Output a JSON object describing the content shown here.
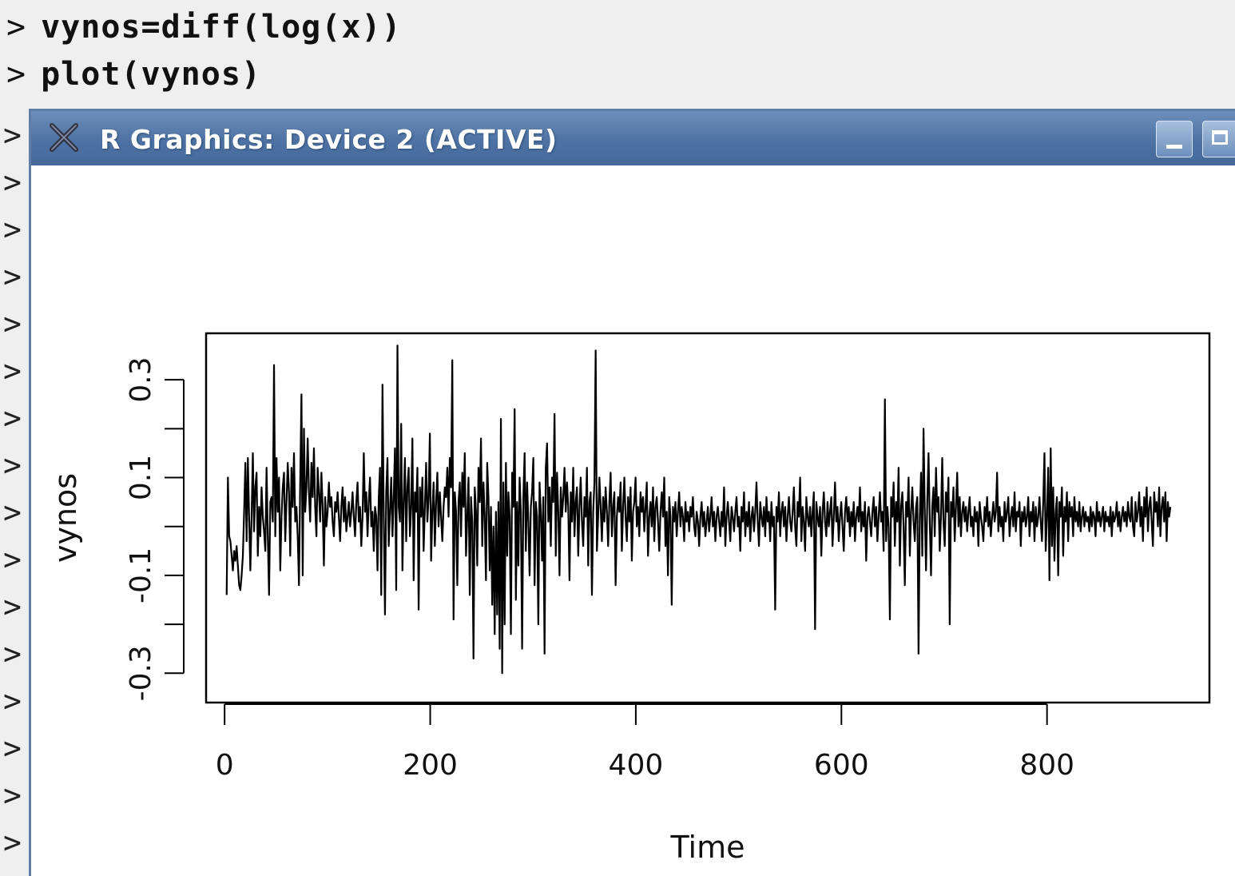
{
  "console": {
    "prompt": ">",
    "commands": [
      "vynos=diff(log(x))",
      "plot(vynos)"
    ],
    "idle_prompts": 16
  },
  "window": {
    "title": "R Graphics: Device 2 (ACTIVE)",
    "icons": {
      "close": "close-x-icon",
      "minimize": "minimize-icon",
      "maximize": "maximize-icon"
    },
    "titlebar_color": "#4d72a3"
  },
  "chart_data": {
    "type": "line",
    "title": "",
    "xlabel": "Time",
    "ylabel": "vynos",
    "xlim": [
      -18,
      958
    ],
    "ylim": [
      -0.36,
      0.395
    ],
    "xticks": [
      0,
      200,
      400,
      600,
      800
    ],
    "yticks": [
      -0.3,
      -0.2,
      -0.1,
      0.0,
      0.1,
      0.2,
      0.3
    ],
    "ytick_labels": [
      "-0.3",
      "",
      "-0.1",
      "",
      "0.1",
      "",
      "0.3"
    ],
    "xtick_labels": [
      "0",
      "200",
      "400",
      "600",
      "800"
    ],
    "grid": false,
    "line_color": "#000000",
    "n_points": 919,
    "series": [
      {
        "x_start": 2,
        "x_end": 920,
        "y": [
          -0.14,
          0.1,
          -0.02,
          -0.03,
          -0.06,
          -0.09,
          -0.05,
          -0.07,
          -0.04,
          -0.08,
          -0.12,
          -0.13,
          -0.1,
          -0.06,
          0.03,
          0.13,
          -0.03,
          0.14,
          0.02,
          -0.09,
          0.02,
          0.15,
          -0.01,
          0.08,
          0.11,
          -0.06,
          0.04,
          -0.02,
          0.08,
          0.02,
          -0.01,
          -0.05,
          0.12,
          -0.02,
          -0.14,
          0.05,
          0.06,
          0.01,
          0.33,
          -0.02,
          0.14,
          0.03,
          0.1,
          -0.09,
          0.02,
          0.08,
          0.11,
          -0.03,
          0.05,
          0.13,
          0.07,
          -0.06,
          0.12,
          0.04,
          0.15,
          0.01,
          0.04,
          -0.02,
          -0.12,
          0.09,
          0.27,
          -0.1,
          0.2,
          0.03,
          0.08,
          0.18,
          0.07,
          0.01,
          0.13,
          0.06,
          0.16,
          0.04,
          -0.02,
          0.12,
          0.07,
          0.01,
          0.11,
          0.04,
          -0.08,
          0.06,
          0.0,
          0.03,
          0.09,
          0.04,
          0.06,
          0.01,
          -0.02,
          0.05,
          0.03,
          0.07,
          0.02,
          -0.03,
          0.04,
          0.08,
          0.01,
          0.06,
          -0.01,
          0.02,
          0.05,
          0.0,
          0.03,
          0.07,
          0.02,
          -0.02,
          0.05,
          0.09,
          0.01,
          0.04,
          -0.04,
          0.02,
          0.15,
          0.03,
          0.07,
          -0.02,
          0.05,
          0.1,
          0.0,
          0.03,
          -0.05,
          0.04,
          0.02,
          -0.09,
          0.06,
          0.12,
          -0.14,
          0.29,
          0.02,
          -0.18,
          0.07,
          0.14,
          -0.04,
          0.03,
          0.1,
          -0.02,
          0.06,
          0.16,
          -0.13,
          0.37,
          0.04,
          0.01,
          0.21,
          -0.09,
          0.05,
          0.14,
          -0.03,
          0.08,
          0.12,
          -0.02,
          0.04,
          0.18,
          -0.11,
          0.07,
          0.03,
          0.12,
          -0.17,
          0.08,
          0.02,
          0.1,
          -0.05,
          0.04,
          0.13,
          0.01,
          0.06,
          0.19,
          -0.07,
          0.03,
          0.09,
          -0.04,
          0.05,
          0.11,
          0.0,
          0.07,
          0.02,
          -0.03,
          0.04,
          0.08,
          0.06,
          0.12,
          0.02,
          0.14,
          0.08,
          0.34,
          -0.19,
          0.07,
          0.03,
          -0.12,
          0.05,
          0.09,
          -0.02,
          0.11,
          0.04,
          0.15,
          -0.06,
          0.02,
          0.1,
          -0.14,
          0.06,
          0.01,
          -0.27,
          0.08,
          0.03,
          -0.08,
          0.12,
          0.05,
          0.18,
          -0.04,
          0.09,
          0.02,
          -0.11,
          0.13,
          0.06,
          -0.09,
          0.04,
          -0.16,
          0.0,
          -0.22,
          0.03,
          -0.18,
          0.05,
          -0.25,
          0.22,
          -0.3,
          0.09,
          -0.2,
          0.13,
          -0.06,
          0.07,
          0.02,
          -0.22,
          0.11,
          0.04,
          0.24,
          -0.15,
          0.05,
          -0.08,
          0.1,
          0.03,
          -0.25,
          0.06,
          0.15,
          -0.05,
          0.09,
          0.01,
          -0.1,
          0.04,
          0.07,
          0.14,
          -0.12,
          0.05,
          0.02,
          -0.2,
          0.09,
          0.03,
          -0.07,
          0.06,
          -0.26,
          0.12,
          0.17,
          0.01,
          0.08,
          -0.04,
          0.1,
          0.05,
          0.23,
          -0.06,
          0.11,
          0.03,
          -0.1,
          0.08,
          0.02,
          0.06,
          0.12,
          0.03,
          0.09,
          0.04,
          -0.11,
          0.07,
          0.01,
          0.12,
          -0.02,
          0.05,
          0.08,
          -0.06,
          0.04,
          0.1,
          0.01,
          -0.04,
          0.06,
          0.02,
          0.12,
          -0.08,
          0.05,
          0.07,
          -0.14,
          0.03,
          0.09,
          0.36,
          -0.05,
          0.02,
          0.1,
          0.04,
          -0.03,
          0.06,
          0.01,
          0.08,
          0.03,
          -0.04,
          0.05,
          0.11,
          -0.02,
          0.04,
          0.07,
          -0.12,
          0.02,
          0.06,
          0.03,
          0.09,
          -0.05,
          0.04,
          0.1,
          0.02,
          -0.03,
          0.06,
          0.01,
          0.08,
          -0.07,
          0.03,
          0.05,
          0.1,
          0.0,
          0.04,
          -0.02,
          0.07,
          0.03,
          0.06,
          -0.01,
          0.04,
          0.09,
          -0.06,
          0.02,
          0.05,
          0.0,
          0.08,
          -0.03,
          0.04,
          0.06,
          0.01,
          -0.05,
          0.03,
          0.07,
          0.02,
          0.1,
          -0.04,
          0.03,
          -0.1,
          0.06,
          0.02,
          -0.16,
          0.04,
          0.01,
          0.05,
          -0.02,
          0.03,
          0.07,
          0.0,
          0.04,
          0.02,
          -0.03,
          0.05,
          0.01,
          0.03,
          -0.01,
          0.04,
          0.02,
          0.06,
          0.0,
          -0.02,
          0.03,
          0.01,
          -0.04,
          0.02,
          0.05,
          0.0,
          0.03,
          -0.02,
          0.01,
          0.04,
          -0.01,
          0.02,
          0.06,
          0.0,
          0.03,
          -0.03,
          0.02,
          0.04,
          0.01,
          -0.02,
          0.03,
          0.0,
          0.08,
          -0.04,
          0.02,
          0.05,
          0.01,
          -0.03,
          0.04,
          0.02,
          -0.01,
          0.03,
          0.06,
          0.0,
          0.02,
          -0.05,
          0.04,
          0.01,
          0.07,
          -0.02,
          0.03,
          0.0,
          0.05,
          -0.03,
          0.02,
          0.04,
          -0.01,
          0.03,
          0.09,
          0.01,
          -0.04,
          0.05,
          0.02,
          0.0,
          0.04,
          -0.02,
          0.06,
          0.01,
          0.03,
          -0.03,
          0.05,
          0.0,
          0.02,
          -0.17,
          0.04,
          0.01,
          0.07,
          -0.02,
          0.03,
          0.05,
          0.0,
          0.04,
          -0.03,
          0.02,
          0.06,
          0.01,
          -0.01,
          0.03,
          0.08,
          0.0,
          -0.04,
          0.05,
          0.02,
          0.1,
          -0.03,
          0.04,
          0.01,
          -0.05,
          0.06,
          0.02,
          0.0,
          0.04,
          -0.02,
          0.03,
          0.07,
          -0.21,
          0.05,
          0.02,
          0.0,
          0.04,
          -0.06,
          0.03,
          0.07,
          0.01,
          -0.02,
          0.05,
          0.0,
          0.03,
          0.06,
          -0.04,
          0.02,
          0.09,
          0.01,
          0.04,
          -0.03,
          0.02,
          0.05,
          0.0,
          -0.05,
          0.03,
          0.06,
          0.01,
          0.04,
          -0.02,
          0.03,
          0.0,
          0.05,
          -0.03,
          0.02,
          0.04,
          0.01,
          0.08,
          -0.01,
          0.03,
          0.0,
          0.05,
          -0.07,
          0.02,
          0.04,
          0.01,
          -0.02,
          0.03,
          0.06,
          0.0,
          0.04,
          -0.03,
          0.02,
          0.07,
          0.01,
          0.03,
          -0.05,
          0.26,
          -0.03,
          0.04,
          0.0,
          -0.19,
          0.06,
          0.02,
          0.09,
          -0.04,
          0.05,
          0.01,
          0.12,
          -0.08,
          0.04,
          0.07,
          0.0,
          -0.12,
          0.05,
          0.02,
          0.1,
          -0.06,
          0.03,
          0.08,
          0.01,
          -0.03,
          0.04,
          0.06,
          -0.26,
          0.02,
          0.11,
          -0.06,
          0.2,
          0.03,
          -0.09,
          0.05,
          0.15,
          0.01,
          -0.1,
          0.04,
          0.08,
          -0.02,
          0.12,
          0.03,
          0.06,
          -0.05,
          0.02,
          0.14,
          0.01,
          -0.04,
          0.07,
          0.03,
          0.1,
          -0.2,
          0.05,
          0.02,
          0.08,
          -0.03,
          0.04,
          0.11,
          0.0,
          0.06,
          -0.02,
          0.03,
          0.05,
          0.01,
          0.04,
          -0.01,
          0.03,
          0.06,
          0.0,
          0.02,
          -0.02,
          0.04,
          0.01,
          0.03,
          -0.04,
          0.05,
          0.02,
          0.0,
          -0.03,
          0.04,
          0.01,
          0.06,
          0.0,
          0.03,
          -0.02,
          0.02,
          0.05,
          0.01,
          0.03,
          0.11,
          -0.01,
          0.04,
          0.0,
          0.02,
          -0.03,
          0.05,
          0.01,
          0.03,
          0.06,
          -0.02,
          0.02,
          0.04,
          0.0,
          0.07,
          -0.01,
          0.03,
          0.02,
          0.05,
          -0.04,
          0.03,
          0.01,
          0.04,
          0.0,
          0.02,
          0.06,
          -0.02,
          0.03,
          0.01,
          0.05,
          -0.03,
          0.04,
          0.0,
          0.02,
          0.06,
          0.01,
          -0.03,
          0.05,
          0.15,
          -0.05,
          0.02,
          0.12,
          -0.11,
          0.16,
          -0.04,
          0.08,
          -0.07,
          0.03,
          0.06,
          -0.1,
          0.05,
          0.02,
          0.08,
          -0.06,
          0.04,
          0.01,
          0.07,
          -0.03,
          0.05,
          0.02,
          0.04,
          -0.02,
          0.06,
          0.01,
          0.03,
          0.0,
          0.05,
          -0.01,
          0.02,
          0.04,
          0.0,
          0.03,
          0.01,
          0.02,
          -0.01,
          0.04,
          0.0,
          0.03,
          0.02,
          -0.02,
          0.05,
          0.01,
          0.03,
          0.0,
          0.02,
          0.04,
          -0.01,
          0.03,
          0.01,
          0.02,
          0.0,
          0.04,
          -0.02,
          0.03,
          0.01,
          0.02,
          0.05,
          0.0,
          0.03,
          -0.01,
          0.02,
          0.04,
          0.01,
          0.03,
          0.0,
          0.05,
          0.02,
          0.01,
          0.06,
          0.0,
          -0.02,
          0.05,
          0.01,
          0.03,
          0.07,
          0.0,
          0.04,
          -0.03,
          0.06,
          0.02,
          0.08,
          -0.01,
          0.04,
          0.06,
          0.01,
          -0.04,
          0.07,
          0.03,
          0.05,
          0.0,
          0.08,
          -0.02,
          0.04,
          0.06,
          0.01,
          0.07,
          -0.03,
          0.05,
          0.02,
          0.04
        ]
      }
    ]
  }
}
